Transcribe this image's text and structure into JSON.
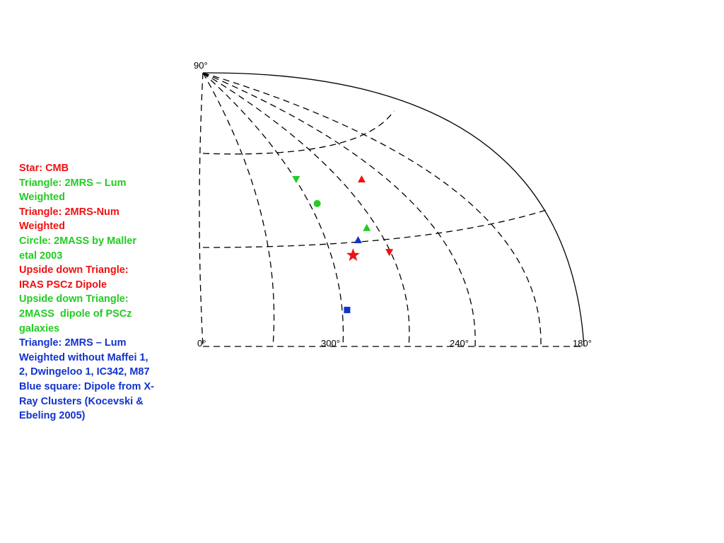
{
  "colors": {
    "red": "#ee1111",
    "green": "#22cc22",
    "blue": "#1133cc",
    "grid": "#000000"
  },
  "legend": [
    {
      "lines": [
        "Star: CMB"
      ],
      "color": "#ee1111"
    },
    {
      "lines": [
        "Triangle: 2MRS – Lum",
        "Weighted"
      ],
      "color": "#22cc22"
    },
    {
      "lines": [
        "Triangle: 2MRS-Num",
        "Weighted"
      ],
      "color": "#ee1111"
    },
    {
      "lines": [
        "Circle: 2MASS by Maller",
        "etal 2003"
      ],
      "color": "#22cc22"
    },
    {
      "lines": [
        "Upside down Triangle:",
        "IRAS PSCz Dipole"
      ],
      "color": "#ee1111"
    },
    {
      "lines": [
        "Upside down Triangle:",
        "2MASS  dipole of PSCz",
        "galaxies"
      ],
      "color": "#22cc22"
    },
    {
      "lines": [
        "Triangle: 2MRS – Lum",
        "Weighted without Maffei 1,",
        "2, Dwingeloo 1, IC342, M87"
      ],
      "color": "#1133cc"
    },
    {
      "lines": [
        "Blue square: Dipole from X-",
        "Ray Clusters (Kocevski &",
        "Ebeling 2005)"
      ],
      "color": "#1133cc"
    }
  ],
  "axis_labels": {
    "top": "90°",
    "left": "0°",
    "mid": "300°",
    "right_mid": "240°",
    "right": "180°"
  },
  "chart_data": {
    "type": "scatter",
    "projection": "quarter-sky galactic coordinates",
    "markers": [
      {
        "shape": "star",
        "label": "CMB",
        "color": "#ee1111",
        "l": 276,
        "b": 30
      },
      {
        "shape": "triangle-up",
        "label": "2MRS - Lum Weighted",
        "color": "#22cc22",
        "l": 262,
        "b": 39
      },
      {
        "shape": "triangle-up",
        "label": "2MRS-Num Weighted",
        "color": "#ee1111",
        "l": 251,
        "b": 55
      },
      {
        "shape": "circle",
        "label": "2MASS by Maller etal 2003",
        "color": "#22cc22",
        "l": 287,
        "b": 47
      },
      {
        "shape": "triangle-down",
        "label": "IRAS PSCz Dipole",
        "color": "#ee1111",
        "l": 255,
        "b": 31
      },
      {
        "shape": "triangle-down",
        "label": "2MASS dipole of PSCz galaxies",
        "color": "#22cc22",
        "l": 296,
        "b": 55
      },
      {
        "shape": "triangle-up",
        "label": "2MRS - Lum Weighted without Maffei 1, 2, Dwingeloo 1, IC342, M87",
        "color": "#1133cc",
        "l": 270,
        "b": 35
      },
      {
        "shape": "square",
        "label": "Dipole from X-Ray Clusters (Kocevski & Ebeling 2005)",
        "color": "#1133cc",
        "l": 288,
        "b": 12
      }
    ]
  }
}
